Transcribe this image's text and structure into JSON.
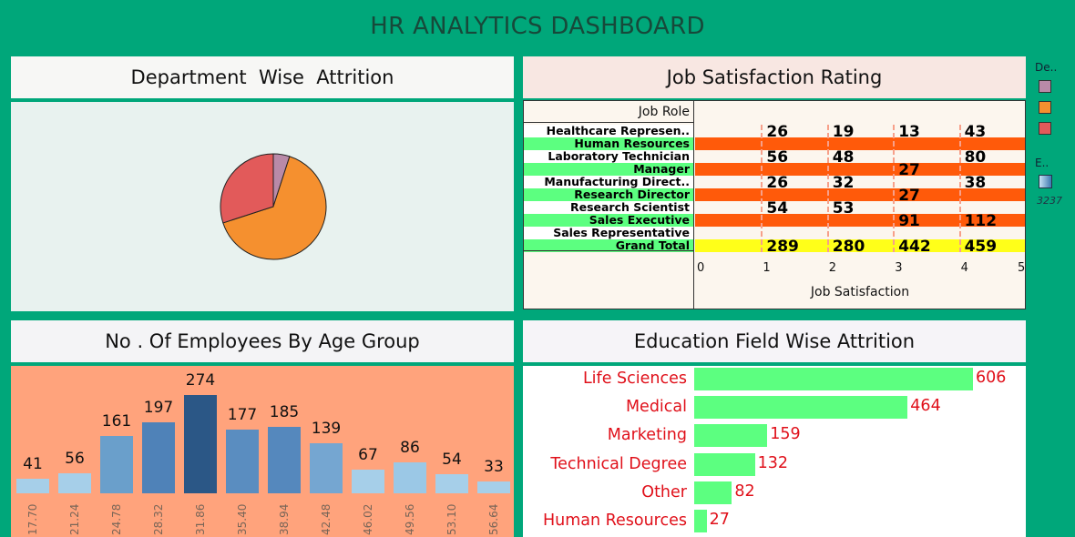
{
  "dashboard": {
    "title": "HR ANALYTICS DASHBOARD"
  },
  "panels": {
    "department": {
      "title": "Department  Wise  Attrition"
    },
    "job_satisfaction": {
      "title": "Job Satisfaction Rating",
      "row_header": "Job Role",
      "x_title": "Job Satisfaction",
      "x_ticks": [
        "0",
        "1",
        "2",
        "3",
        "4",
        "5"
      ]
    },
    "age": {
      "title": "No . Of Employees By Age Group"
    },
    "education": {
      "title": "Education Field Wise Attrition"
    }
  },
  "legend": {
    "dept_title": "De..",
    "dept_colors": [
      "#b98aa8",
      "#f5902f",
      "#e25a5a"
    ],
    "edu_title": "E..",
    "edu_value": "3237"
  },
  "chart_data": [
    {
      "type": "pie",
      "title": "Department  Wise  Attrition",
      "values": [
        5,
        65,
        30
      ],
      "colors": [
        "#b98aa8",
        "#f5902f",
        "#e25a5a"
      ]
    },
    {
      "type": "table",
      "title": "Job Satisfaction Rating",
      "row_header": "Job Role",
      "xlabel": "Job Satisfaction",
      "rows": [
        {
          "label": "Healthcare Represen..",
          "values": [
            null,
            26,
            19,
            13,
            43
          ],
          "bg": "white"
        },
        {
          "label": "Human Resources",
          "values": [
            null,
            null,
            null,
            null,
            null
          ],
          "bg": "green"
        },
        {
          "label": "Laboratory Technician",
          "values": [
            null,
            56,
            48,
            null,
            80
          ],
          "bg": "white"
        },
        {
          "label": "Manager",
          "values": [
            null,
            null,
            null,
            27,
            null
          ],
          "bg": "green"
        },
        {
          "label": "Manufacturing Direct..",
          "values": [
            null,
            26,
            32,
            null,
            38
          ],
          "bg": "white"
        },
        {
          "label": "Research Director",
          "values": [
            null,
            null,
            null,
            27,
            null
          ],
          "bg": "green"
        },
        {
          "label": "Research Scientist",
          "values": [
            null,
            54,
            53,
            null,
            null
          ],
          "bg": "white"
        },
        {
          "label": "Sales Executive",
          "values": [
            null,
            null,
            null,
            91,
            112
          ],
          "bg": "green"
        },
        {
          "label": "Sales Representative",
          "values": [
            null,
            null,
            null,
            null,
            null
          ],
          "bg": "white"
        },
        {
          "label": "Grand Total",
          "values": [
            null,
            289,
            280,
            442,
            459
          ],
          "bg": "green"
        }
      ]
    },
    {
      "type": "bar",
      "title": "No . Of Employees By Age Group",
      "categories": [
        "17.70",
        "21.24",
        "24.78",
        "28.32",
        "31.86",
        "35.40",
        "38.94",
        "42.48",
        "46.02",
        "49.56",
        "53.10",
        "56.64"
      ],
      "values": [
        41,
        56,
        161,
        197,
        274,
        177,
        185,
        139,
        67,
        86,
        54,
        33
      ],
      "colors": [
        "#a6cfe9",
        "#a6cfe9",
        "#6a9fcb",
        "#4f82b8",
        "#2b5786",
        "#5a8dc0",
        "#5588bd",
        "#75a6d1",
        "#a6cfe9",
        "#9bc8e6",
        "#a6cfe9",
        "#a6cfe9"
      ]
    },
    {
      "type": "bar",
      "title": "Education Field Wise Attrition",
      "categories": [
        "Life Sciences",
        "Medical",
        "Marketing",
        "Technical Degree",
        "Other",
        "Human Resources"
      ],
      "values": [
        606,
        464,
        159,
        132,
        82,
        27
      ]
    }
  ]
}
